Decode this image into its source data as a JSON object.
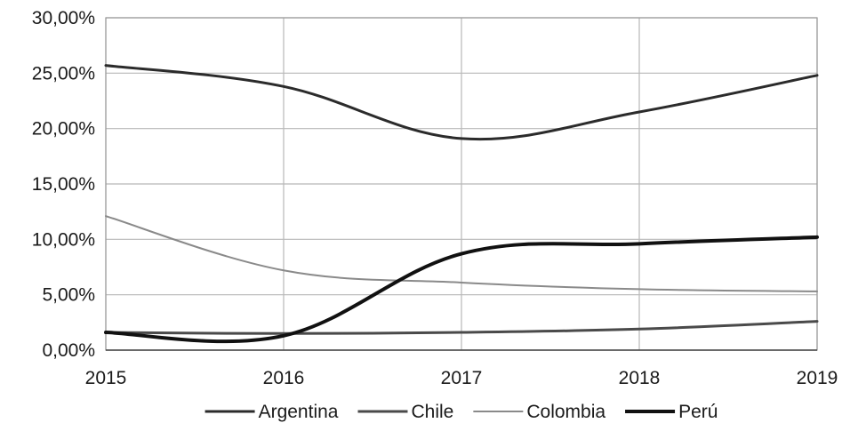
{
  "chart_data": {
    "type": "line",
    "title": "",
    "xlabel": "",
    "ylabel": "",
    "x": [
      2015,
      2016,
      2017,
      2018,
      2019
    ],
    "x_tick_labels": [
      "2015",
      "2016",
      "2017",
      "2018",
      "2019"
    ],
    "xlim": [
      2015,
      2019
    ],
    "ylim": [
      0,
      0.3
    ],
    "y_tick_values": [
      0,
      0.05,
      0.1,
      0.15,
      0.2,
      0.25,
      0.3
    ],
    "y_tick_labels": [
      "0,00%",
      "5,00%",
      "10,00%",
      "15,00%",
      "20,00%",
      "25,00%",
      "30,00%"
    ],
    "grid": true,
    "legend_position": "bottom",
    "smooth": true,
    "series": [
      {
        "name": "Argentina",
        "values": [
          0.257,
          0.238,
          0.191,
          0.215,
          0.248
        ],
        "color": "#2b2b2b",
        "stroke": "medium"
      },
      {
        "name": "Chile",
        "values": [
          0.016,
          0.015,
          0.016,
          0.019,
          0.026
        ],
        "color": "#4a4a4a",
        "stroke": "medium"
      },
      {
        "name": "Colombia",
        "values": [
          0.121,
          0.072,
          0.061,
          0.055,
          0.053
        ],
        "color": "#8a8a8a",
        "stroke": "thin"
      },
      {
        "name": "Perú",
        "values": [
          0.016,
          0.013,
          0.087,
          0.096,
          0.102
        ],
        "color": "#111111",
        "stroke": "thick"
      }
    ]
  }
}
